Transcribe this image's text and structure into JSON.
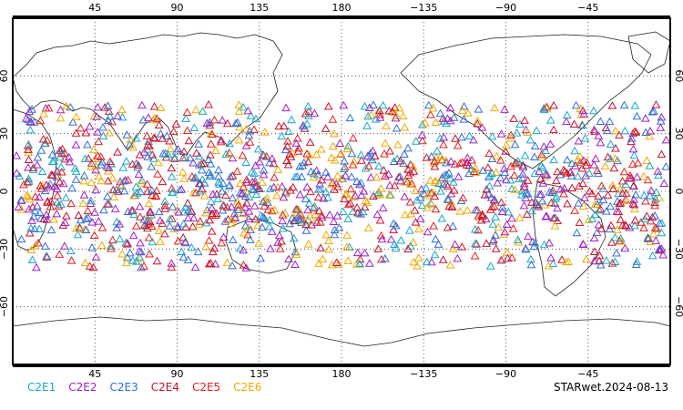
{
  "map": {
    "projection": "equirectangular",
    "lon_range": [
      0,
      360
    ],
    "lat_range": [
      -90,
      90
    ],
    "x_tick_labels": [
      "45",
      "90",
      "135",
      "180",
      "−135",
      "−90",
      "−45"
    ],
    "y_tick_labels": [
      "60",
      "30",
      "0",
      "−30",
      "−60"
    ],
    "grid": "dotted",
    "marker": "open-triangle",
    "observation_lat_band": [
      -40,
      45
    ]
  },
  "legend": {
    "items": [
      {
        "label": "C2E1",
        "color": "#19a7c9"
      },
      {
        "label": "C2E2",
        "color": "#a020c8"
      },
      {
        "label": "C2E3",
        "color": "#2f6fd6"
      },
      {
        "label": "C2E4",
        "color": "#c8102e"
      },
      {
        "label": "C2E5",
        "color": "#e02020"
      },
      {
        "label": "C2E6",
        "color": "#f2a900"
      }
    ]
  },
  "footer": {
    "date_label": "STARwet.2024-08-13"
  }
}
